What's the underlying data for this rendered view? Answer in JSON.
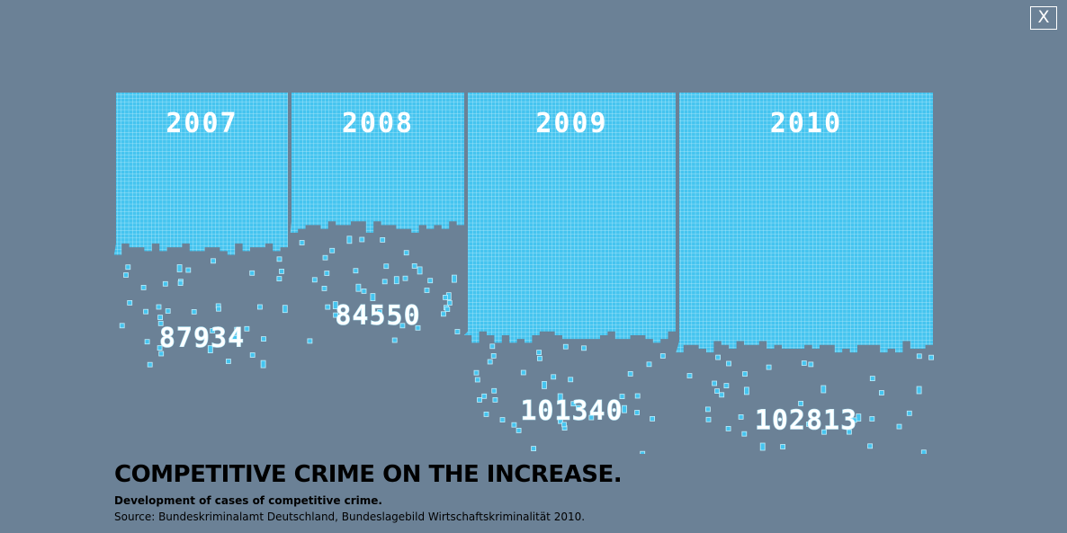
{
  "close_label": "X",
  "title": "COMPETITIVE CRIME ON THE INCREASE.",
  "subtitle": "Development of cases of competitive crime.",
  "source": "Source: Bundeskriminalamt Deutschland, Bundeslagebild Wirtschaftskriminalität 2010.",
  "colors": {
    "background": "#6b8196",
    "pixel_fill": "#45c4ef",
    "pixel_grid": "#bdeefc",
    "label_text": "#ffffff"
  },
  "chart_data": {
    "type": "bar",
    "categories": [
      "2007",
      "2008",
      "2009",
      "2010"
    ],
    "values": [
      87934,
      84550,
      101340,
      102813
    ],
    "value_labels": [
      "87934",
      "84550",
      "101340",
      "102813"
    ],
    "title": "COMPETITIVE CRIME ON THE INCREASE.",
    "subtitle": "Development of cases of competitive crime.",
    "grid": false,
    "legend": "none"
  }
}
